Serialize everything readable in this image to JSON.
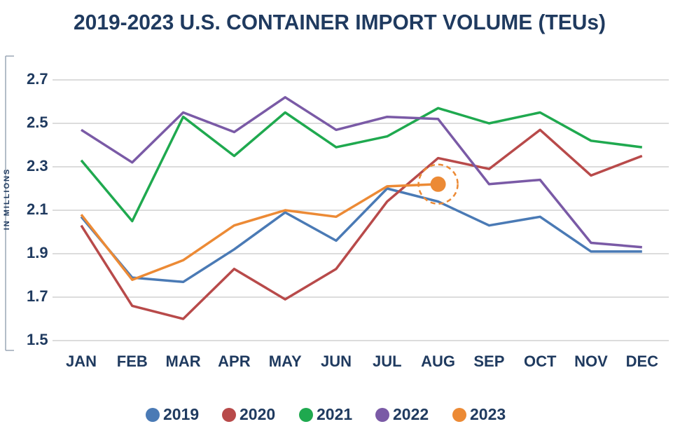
{
  "chart_data": {
    "type": "line",
    "title": "2019-2023 U.S. CONTAINER IMPORT VOLUME (TEUs)",
    "y_label": "IN MILLIONS",
    "categories": [
      "JAN",
      "FEB",
      "MAR",
      "APR",
      "MAY",
      "JUN",
      "JUL",
      "AUG",
      "SEP",
      "OCT",
      "NOV",
      "DEC"
    ],
    "series": [
      {
        "name": "2019",
        "color": "#4a7ab5",
        "values": [
          2.07,
          1.79,
          1.77,
          1.92,
          2.09,
          1.96,
          2.2,
          2.14,
          2.03,
          2.07,
          1.91,
          1.91
        ]
      },
      {
        "name": "2020",
        "color": "#b84a4a",
        "values": [
          2.03,
          1.66,
          1.6,
          1.83,
          1.69,
          1.83,
          2.14,
          2.34,
          2.29,
          2.47,
          2.26,
          2.35
        ]
      },
      {
        "name": "2021",
        "color": "#1fa94f",
        "values": [
          2.33,
          2.05,
          2.53,
          2.35,
          2.55,
          2.39,
          2.44,
          2.57,
          2.5,
          2.55,
          2.42,
          2.39
        ]
      },
      {
        "name": "2022",
        "color": "#7a5aa6",
        "values": [
          2.47,
          2.32,
          2.55,
          2.46,
          2.62,
          2.47,
          2.53,
          2.52,
          2.22,
          2.24,
          1.95,
          1.93
        ]
      },
      {
        "name": "2023",
        "color": "#ec8a35",
        "values": [
          2.08,
          1.78,
          1.87,
          2.03,
          2.1,
          2.07,
          2.21,
          2.22,
          null,
          null,
          null,
          null
        ]
      }
    ],
    "ylim": [
      1.5,
      2.7
    ],
    "yticks": [
      1.5,
      1.7,
      1.9,
      2.1,
      2.3,
      2.5,
      2.7
    ],
    "grid": true,
    "legend": "bottom"
  }
}
